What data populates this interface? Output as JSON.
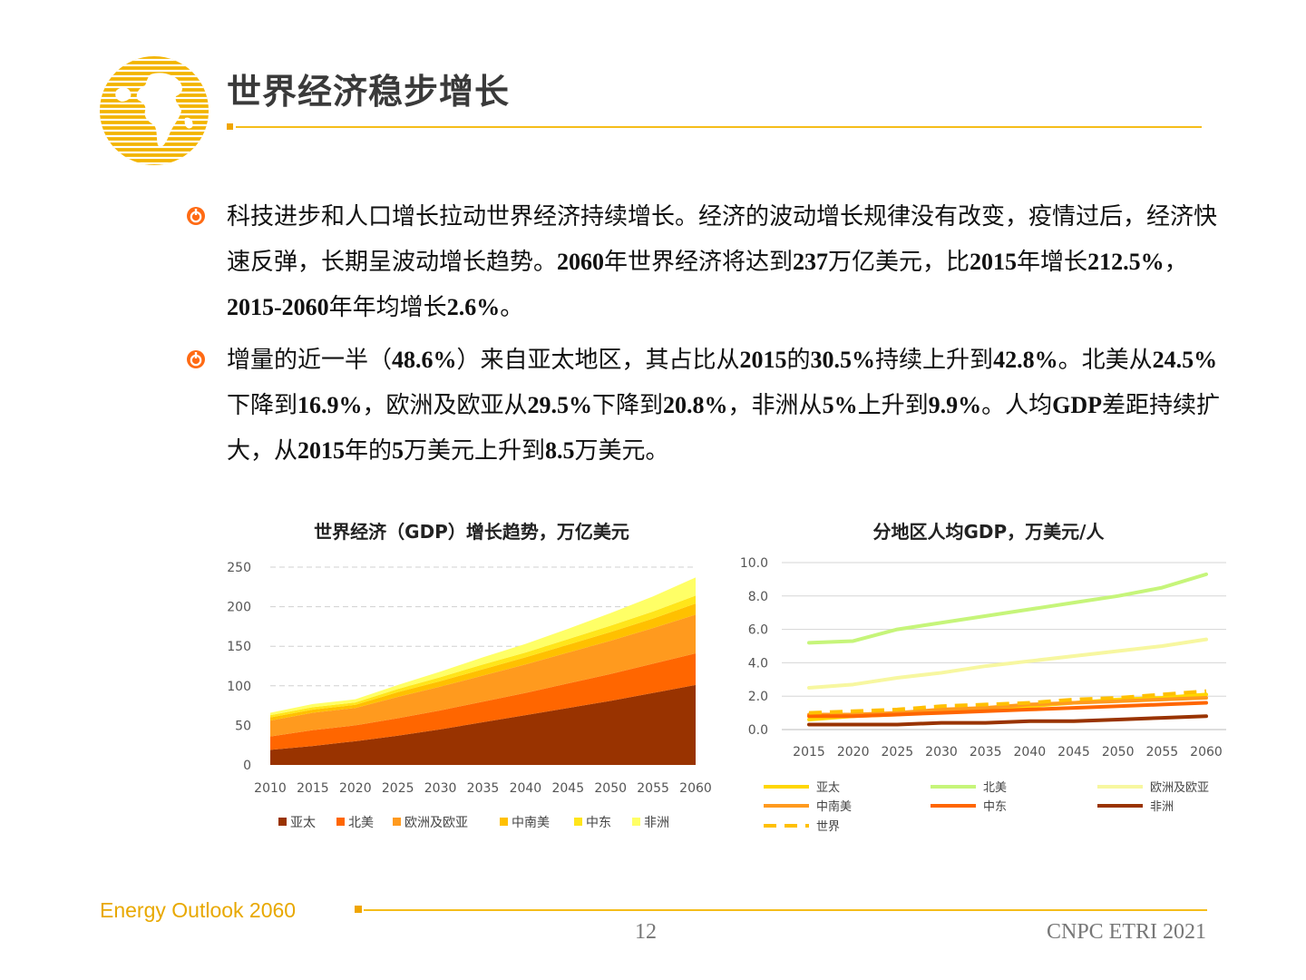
{
  "header": {
    "title": "世界经济稳步增长"
  },
  "bullets": [
    {
      "runs": [
        {
          "t": "科技进步和人口增长拉动世界经济持续增长。经济的波动增长规律没有改变，疫情过后，经济快速反弹，长期呈波动增长趋势。",
          "b": false
        },
        {
          "t": "2060",
          "b": true
        },
        {
          "t": "年世界经济将达到",
          "b": false
        },
        {
          "t": "237",
          "b": true
        },
        {
          "t": "万亿美元，比",
          "b": false
        },
        {
          "t": "2015",
          "b": true
        },
        {
          "t": "年增长",
          "b": false
        },
        {
          "t": "212.5%",
          "b": true
        },
        {
          "t": "，",
          "b": false
        },
        {
          "t": "2015-2060",
          "b": true
        },
        {
          "t": "年年均增长",
          "b": false
        },
        {
          "t": "2.6%",
          "b": true
        },
        {
          "t": "。",
          "b": false
        }
      ]
    },
    {
      "runs": [
        {
          "t": "增量的近一半（",
          "b": false
        },
        {
          "t": "48.6%",
          "b": true
        },
        {
          "t": "）来自亚太地区，其占比从",
          "b": false
        },
        {
          "t": "2015",
          "b": true
        },
        {
          "t": "的",
          "b": false
        },
        {
          "t": "30.5%",
          "b": true
        },
        {
          "t": "持续上升到",
          "b": false
        },
        {
          "t": "42.8%",
          "b": true
        },
        {
          "t": "。北美从",
          "b": false
        },
        {
          "t": "24.5%",
          "b": true
        },
        {
          "t": "下降到",
          "b": false
        },
        {
          "t": "16.9%",
          "b": true
        },
        {
          "t": "，欧洲及欧亚从",
          "b": false
        },
        {
          "t": "29.5%",
          "b": true
        },
        {
          "t": "下降到",
          "b": false
        },
        {
          "t": "20.8%",
          "b": true
        },
        {
          "t": "，非洲从",
          "b": false
        },
        {
          "t": "5%",
          "b": true
        },
        {
          "t": "上升到",
          "b": false
        },
        {
          "t": "9.9%",
          "b": true
        },
        {
          "t": "。人均",
          "b": false
        },
        {
          "t": "GDP",
          "b": true
        },
        {
          "t": "差距持续扩大，从",
          "b": false
        },
        {
          "t": "2015",
          "b": true
        },
        {
          "t": "年的",
          "b": false
        },
        {
          "t": "5",
          "b": true
        },
        {
          "t": "万美元上升到",
          "b": false
        },
        {
          "t": "8.5",
          "b": true
        },
        {
          "t": "万美元。",
          "b": false
        }
      ]
    }
  ],
  "chart_data": [
    {
      "type": "area",
      "stacked": true,
      "title": "世界经济（GDP）增长趋势，万亿美元",
      "x": [
        "2010",
        "2015",
        "2020",
        "2025",
        "2030",
        "2035",
        "2040",
        "2045",
        "2050",
        "2055",
        "2060"
      ],
      "ylim": [
        0,
        250
      ],
      "yticks": [
        "0",
        "50",
        "100",
        "150",
        "200",
        "250"
      ],
      "grid": true,
      "legend_position": "bottom",
      "series": [
        {
          "name": "亚太",
          "color": "#993300",
          "values": [
            19,
            24,
            30,
            37,
            45,
            54,
            63,
            72,
            81,
            91,
            101
          ]
        },
        {
          "name": "北美",
          "color": "#ff6600",
          "values": [
            17,
            20,
            20,
            22,
            24,
            26,
            28,
            31,
            34,
            37,
            40
          ]
        },
        {
          "name": "欧洲及欧亚",
          "color": "#ff9a1e",
          "values": [
            20,
            22,
            22,
            27,
            30,
            33,
            36,
            39,
            42,
            45,
            49
          ]
        },
        {
          "name": "中南美",
          "color": "#ffc000",
          "values": [
            4,
            4,
            4,
            6,
            7,
            8,
            9,
            10,
            11,
            12,
            14
          ]
        },
        {
          "name": "中东",
          "color": "#ffe51a",
          "values": [
            3,
            3,
            3,
            4,
            5,
            6,
            6,
            7,
            8,
            9,
            10
          ]
        },
        {
          "name": "非洲",
          "color": "#ffff66",
          "values": [
            3,
            4,
            4,
            5,
            7,
            9,
            11,
            13,
            16,
            19,
            23
          ]
        }
      ]
    },
    {
      "type": "line",
      "title": "分地区人均GDP，万美元/人",
      "x": [
        "2015",
        "2020",
        "2025",
        "2030",
        "2035",
        "2040",
        "2045",
        "2050",
        "2055",
        "2060"
      ],
      "ylim": [
        0,
        10
      ],
      "yticks": [
        "0.0",
        "2.0",
        "4.0",
        "6.0",
        "8.0",
        "10.0"
      ],
      "grid": true,
      "legend_position": "bottom",
      "series": [
        {
          "name": "亚太",
          "color": "#ffd700",
          "dashed": false,
          "values": [
            0.6,
            0.8,
            0.9,
            1.1,
            1.3,
            1.4,
            1.6,
            1.8,
            1.9,
            2.1
          ]
        },
        {
          "name": "北美",
          "color": "#c6f57a",
          "dashed": false,
          "values": [
            5.2,
            5.3,
            6.0,
            6.4,
            6.8,
            7.2,
            7.6,
            8.0,
            8.5,
            9.3
          ]
        },
        {
          "name": "欧洲及欧亚",
          "color": "#f7f7a0",
          "dashed": false,
          "values": [
            2.5,
            2.7,
            3.1,
            3.4,
            3.8,
            4.1,
            4.4,
            4.7,
            5.0,
            5.4
          ]
        },
        {
          "name": "中南美",
          "color": "#ff9a1e",
          "dashed": false,
          "values": [
            0.9,
            0.9,
            1.0,
            1.2,
            1.3,
            1.5,
            1.6,
            1.7,
            1.8,
            1.9
          ]
        },
        {
          "name": "中东",
          "color": "#ff6600",
          "dashed": false,
          "values": [
            0.8,
            0.8,
            0.9,
            1.0,
            1.1,
            1.2,
            1.3,
            1.4,
            1.5,
            1.6
          ]
        },
        {
          "name": "非洲",
          "color": "#993300",
          "dashed": false,
          "values": [
            0.3,
            0.3,
            0.3,
            0.4,
            0.4,
            0.5,
            0.5,
            0.6,
            0.7,
            0.8
          ]
        },
        {
          "name": "世界",
          "color": "#ffc000",
          "dashed": true,
          "values": [
            1.0,
            1.1,
            1.2,
            1.4,
            1.5,
            1.6,
            1.8,
            1.9,
            2.1,
            2.3
          ]
        }
      ]
    }
  ],
  "footer": {
    "left": "Energy Outlook 2060",
    "page_number": "12",
    "right": "CNPC ETRI 2021"
  }
}
